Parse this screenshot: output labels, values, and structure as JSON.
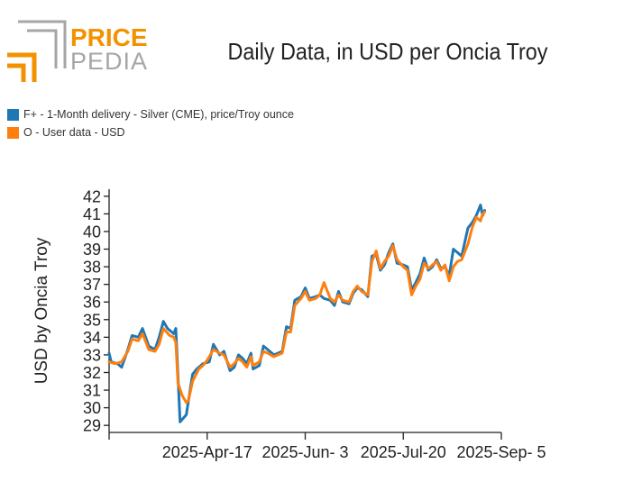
{
  "brand": {
    "line1": "PRICE",
    "line2": "PEDIA",
    "accent_color": "#f39200",
    "gray_color": "#a6a6a6"
  },
  "chart_data": {
    "type": "line",
    "title": "Daily Data, in USD per Oncia Troy",
    "xlabel": "",
    "ylabel": "USD by Oncia Troy",
    "ylim": [
      28.6,
      42.4
    ],
    "y_ticks": [
      29,
      30,
      31,
      32,
      33,
      34,
      35,
      36,
      37,
      38,
      39,
      40,
      41,
      42
    ],
    "x_range": [
      "2025-03-01",
      "2025-09-05"
    ],
    "x_ticks": [
      {
        "label": "2025-Apr-17",
        "date": "2025-04-17"
      },
      {
        "label": "2025-Jun- 3",
        "date": "2025-06-03"
      },
      {
        "label": "2025-Jul-20",
        "date": "2025-07-20"
      },
      {
        "label": "2025-Sep- 5",
        "date": "2025-09-05"
      }
    ],
    "legend_position": "top-left",
    "series": [
      {
        "name": "F+ - 1-Month delivery - Silver (CME), price/Troy ounce",
        "color": "#1f77b4",
        "points": [
          [
            "2025-03-01",
            33.1
          ],
          [
            "2025-03-02",
            32.6
          ],
          [
            "2025-03-05",
            32.5
          ],
          [
            "2025-03-07",
            32.3
          ],
          [
            "2025-03-10",
            33.3
          ],
          [
            "2025-03-12",
            34.1
          ],
          [
            "2025-03-15",
            34.0
          ],
          [
            "2025-03-17",
            34.5
          ],
          [
            "2025-03-20",
            33.5
          ],
          [
            "2025-03-23",
            33.3
          ],
          [
            "2025-03-25",
            34.0
          ],
          [
            "2025-03-27",
            34.9
          ],
          [
            "2025-03-29",
            34.5
          ],
          [
            "2025-04-01",
            34.2
          ],
          [
            "2025-04-02",
            34.5
          ],
          [
            "2025-04-03",
            31.8
          ],
          [
            "2025-04-04",
            29.2
          ],
          [
            "2025-04-07",
            29.6
          ],
          [
            "2025-04-10",
            31.9
          ],
          [
            "2025-04-12",
            32.2
          ],
          [
            "2025-04-15",
            32.5
          ],
          [
            "2025-04-18",
            32.6
          ],
          [
            "2025-04-20",
            33.6
          ],
          [
            "2025-04-23",
            33.0
          ],
          [
            "2025-04-25",
            33.2
          ],
          [
            "2025-04-28",
            32.1
          ],
          [
            "2025-04-30",
            32.3
          ],
          [
            "2025-05-02",
            33.0
          ],
          [
            "2025-05-04",
            32.8
          ],
          [
            "2025-05-06",
            32.5
          ],
          [
            "2025-05-08",
            33.1
          ],
          [
            "2025-05-09",
            32.2
          ],
          [
            "2025-05-12",
            32.4
          ],
          [
            "2025-05-14",
            33.5
          ],
          [
            "2025-05-16",
            33.3
          ],
          [
            "2025-05-19",
            33.0
          ],
          [
            "2025-05-21",
            33.1
          ],
          [
            "2025-05-23",
            33.2
          ],
          [
            "2025-05-25",
            34.6
          ],
          [
            "2025-05-27",
            34.5
          ],
          [
            "2025-05-29",
            36.1
          ],
          [
            "2025-06-01",
            36.3
          ],
          [
            "2025-06-03",
            36.8
          ],
          [
            "2025-06-05",
            36.2
          ],
          [
            "2025-06-08",
            36.3
          ],
          [
            "2025-06-10",
            36.4
          ],
          [
            "2025-06-12",
            36.2
          ],
          [
            "2025-06-15",
            36.1
          ],
          [
            "2025-06-17",
            35.8
          ],
          [
            "2025-06-19",
            36.6
          ],
          [
            "2025-06-21",
            36.0
          ],
          [
            "2025-06-24",
            35.9
          ],
          [
            "2025-06-26",
            36.5
          ],
          [
            "2025-06-28",
            36.8
          ],
          [
            "2025-06-30",
            36.7
          ],
          [
            "2025-07-03",
            36.3
          ],
          [
            "2025-07-05",
            38.6
          ],
          [
            "2025-07-07",
            38.7
          ],
          [
            "2025-07-09",
            37.8
          ],
          [
            "2025-07-11",
            38.1
          ],
          [
            "2025-07-13",
            38.8
          ],
          [
            "2025-07-15",
            39.3
          ],
          [
            "2025-07-17",
            38.2
          ],
          [
            "2025-07-20",
            38.1
          ],
          [
            "2025-07-22",
            38.0
          ],
          [
            "2025-07-24",
            36.7
          ],
          [
            "2025-07-26",
            37.1
          ],
          [
            "2025-07-28",
            37.6
          ],
          [
            "2025-07-30",
            38.5
          ],
          [
            "2025-08-01",
            37.8
          ],
          [
            "2025-08-03",
            38.0
          ],
          [
            "2025-08-05",
            38.4
          ],
          [
            "2025-08-07",
            37.9
          ],
          [
            "2025-08-09",
            38.0
          ],
          [
            "2025-08-11",
            37.5
          ],
          [
            "2025-08-13",
            39.0
          ],
          [
            "2025-08-15",
            38.8
          ],
          [
            "2025-08-17",
            38.6
          ],
          [
            "2025-08-20",
            40.2
          ],
          [
            "2025-08-22",
            40.5
          ],
          [
            "2025-08-24",
            40.9
          ],
          [
            "2025-08-26",
            41.5
          ],
          [
            "2025-08-27",
            40.9
          ],
          [
            "2025-08-28",
            41.2
          ]
        ]
      },
      {
        "name": "O - User data - USD",
        "color": "#ff7f0e",
        "points": [
          [
            "2025-03-01",
            32.6
          ],
          [
            "2025-03-04",
            32.5
          ],
          [
            "2025-03-07",
            32.6
          ],
          [
            "2025-03-10",
            33.2
          ],
          [
            "2025-03-12",
            33.9
          ],
          [
            "2025-03-15",
            33.8
          ],
          [
            "2025-03-17",
            34.2
          ],
          [
            "2025-03-20",
            33.3
          ],
          [
            "2025-03-23",
            33.2
          ],
          [
            "2025-03-25",
            33.6
          ],
          [
            "2025-03-27",
            34.5
          ],
          [
            "2025-03-30",
            34.1
          ],
          [
            "2025-04-01",
            34.0
          ],
          [
            "2025-04-02",
            33.7
          ],
          [
            "2025-04-03",
            31.4
          ],
          [
            "2025-04-05",
            30.7
          ],
          [
            "2025-04-07",
            30.3
          ],
          [
            "2025-04-08",
            30.4
          ],
          [
            "2025-04-10",
            31.5
          ],
          [
            "2025-04-13",
            32.2
          ],
          [
            "2025-04-15",
            32.4
          ],
          [
            "2025-04-17",
            32.7
          ],
          [
            "2025-04-20",
            33.3
          ],
          [
            "2025-04-23",
            33.1
          ],
          [
            "2025-04-25",
            33.0
          ],
          [
            "2025-04-28",
            32.3
          ],
          [
            "2025-04-30",
            32.5
          ],
          [
            "2025-05-02",
            32.8
          ],
          [
            "2025-05-04",
            32.6
          ],
          [
            "2025-05-06",
            32.3
          ],
          [
            "2025-05-08",
            32.9
          ],
          [
            "2025-05-09",
            32.4
          ],
          [
            "2025-05-12",
            32.6
          ],
          [
            "2025-05-14",
            33.2
          ],
          [
            "2025-05-16",
            33.1
          ],
          [
            "2025-05-19",
            32.9
          ],
          [
            "2025-05-21",
            33.0
          ],
          [
            "2025-05-23",
            33.1
          ],
          [
            "2025-05-25",
            34.3
          ],
          [
            "2025-05-27",
            34.3
          ],
          [
            "2025-05-29",
            35.8
          ],
          [
            "2025-06-01",
            36.2
          ],
          [
            "2025-06-03",
            36.6
          ],
          [
            "2025-06-05",
            36.1
          ],
          [
            "2025-06-08",
            36.2
          ],
          [
            "2025-06-10",
            36.4
          ],
          [
            "2025-06-12",
            37.1
          ],
          [
            "2025-06-15",
            36.2
          ],
          [
            "2025-06-17",
            36.0
          ],
          [
            "2025-06-19",
            36.4
          ],
          [
            "2025-06-21",
            36.1
          ],
          [
            "2025-06-24",
            36.0
          ],
          [
            "2025-06-26",
            36.6
          ],
          [
            "2025-06-28",
            36.9
          ],
          [
            "2025-06-30",
            36.6
          ],
          [
            "2025-07-03",
            36.4
          ],
          [
            "2025-07-05",
            38.3
          ],
          [
            "2025-07-07",
            38.9
          ],
          [
            "2025-07-09",
            37.9
          ],
          [
            "2025-07-11",
            38.3
          ],
          [
            "2025-07-13",
            38.6
          ],
          [
            "2025-07-15",
            39.2
          ],
          [
            "2025-07-17",
            38.4
          ],
          [
            "2025-07-20",
            38.0
          ],
          [
            "2025-07-22",
            37.8
          ],
          [
            "2025-07-24",
            36.4
          ],
          [
            "2025-07-26",
            36.9
          ],
          [
            "2025-07-28",
            37.3
          ],
          [
            "2025-07-30",
            38.2
          ],
          [
            "2025-08-01",
            37.9
          ],
          [
            "2025-08-03",
            38.1
          ],
          [
            "2025-08-05",
            38.3
          ],
          [
            "2025-08-07",
            37.8
          ],
          [
            "2025-08-09",
            38.1
          ],
          [
            "2025-08-11",
            37.2
          ],
          [
            "2025-08-13",
            38.0
          ],
          [
            "2025-08-15",
            38.3
          ],
          [
            "2025-08-17",
            38.4
          ],
          [
            "2025-08-20",
            39.3
          ],
          [
            "2025-08-22",
            40.2
          ],
          [
            "2025-08-24",
            40.8
          ],
          [
            "2025-08-26",
            40.6
          ],
          [
            "2025-08-27",
            41.0
          ],
          [
            "2025-08-28",
            41.1
          ]
        ]
      }
    ]
  }
}
